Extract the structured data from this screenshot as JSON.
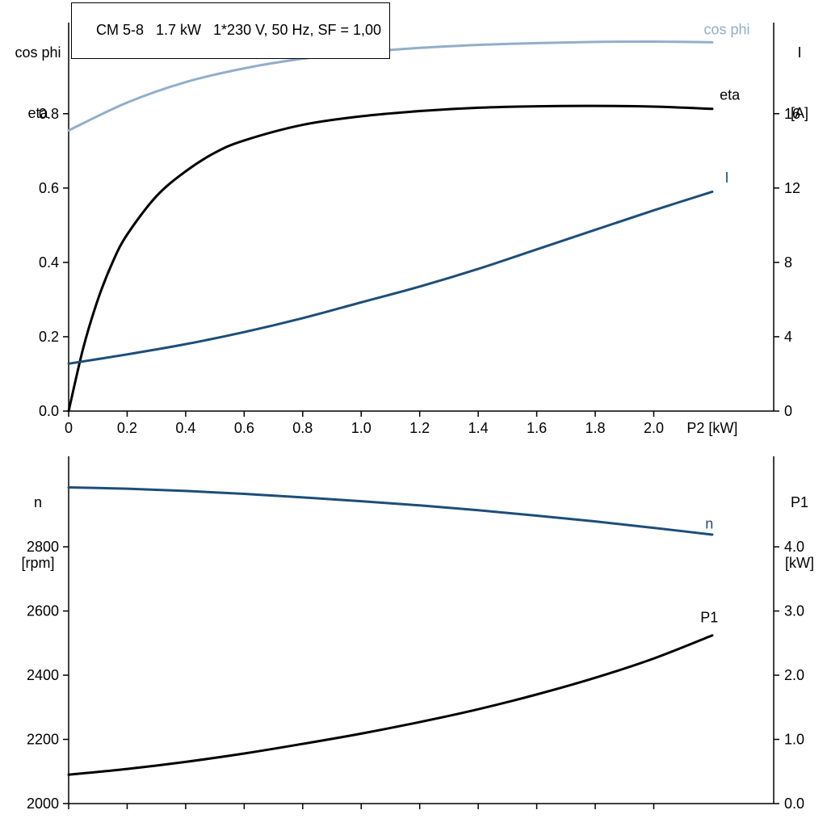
{
  "title_box": "CM 5-8   1.7 kW   1*230 V, 50 Hz, SF = 1,00",
  "chart_data": [
    {
      "type": "line",
      "title": "CM 5-8   1.7 kW   1*230 V, 50 Hz, SF = 1,00",
      "grid": false,
      "x_axis": {
        "label": "P2 [kW]",
        "range": [
          0,
          2.41
        ],
        "label_at_x": 2.2,
        "ticks": [
          {
            "v": 0,
            "label": "0"
          },
          {
            "v": 0.2,
            "label": "0.2"
          },
          {
            "v": 0.4,
            "label": "0.4"
          },
          {
            "v": 0.6,
            "label": "0.6"
          },
          {
            "v": 0.8,
            "label": "0.8"
          },
          {
            "v": 1.0,
            "label": "1.0"
          },
          {
            "v": 1.2,
            "label": "1.2"
          },
          {
            "v": 1.4,
            "label": "1.4"
          },
          {
            "v": 1.6,
            "label": "1.6"
          },
          {
            "v": 1.8,
            "label": "1.8"
          },
          {
            "v": 2.0,
            "label": "2.0"
          }
        ]
      },
      "left_axis": {
        "title_lines": [
          "cos phi",
          "eta"
        ],
        "range": [
          0,
          1.045
        ],
        "ticks": [
          {
            "v": 0,
            "label": "0.0"
          },
          {
            "v": 0.2,
            "label": "0.2"
          },
          {
            "v": 0.4,
            "label": "0.4"
          },
          {
            "v": 0.6,
            "label": "0.6"
          },
          {
            "v": 0.8,
            "label": "0.8"
          }
        ]
      },
      "right_axis": {
        "title_lines": [
          "I",
          "[A]"
        ],
        "range": [
          0,
          20.9
        ],
        "ticks": [
          {
            "v": 0,
            "label": "0"
          },
          {
            "v": 4,
            "label": "4"
          },
          {
            "v": 8,
            "label": "8"
          },
          {
            "v": 12,
            "label": "12"
          },
          {
            "v": 16,
            "label": "16"
          }
        ]
      },
      "series": [
        {
          "id": "cos-phi",
          "name": "cos phi",
          "color": "#92AECB",
          "axis": "left",
          "label_at": [
            2.25,
            1.027
          ],
          "x": [
            0,
            0.2,
            0.4,
            0.6,
            0.8,
            1.0,
            1.2,
            1.4,
            1.6,
            1.8,
            2.0,
            2.2
          ],
          "y": [
            0.755,
            0.83,
            0.885,
            0.922,
            0.948,
            0.965,
            0.977,
            0.985,
            0.99,
            0.993,
            0.994,
            0.992
          ]
        },
        {
          "id": "eta",
          "name": "eta",
          "color": "#000000",
          "axis": "left",
          "label_at": [
            2.26,
            0.851
          ],
          "x": [
            0,
            0.05,
            0.1,
            0.15,
            0.2,
            0.3,
            0.4,
            0.5,
            0.6,
            0.8,
            1.0,
            1.2,
            1.4,
            1.6,
            1.8,
            2.0,
            2.2
          ],
          "y": [
            0,
            0.17,
            0.3,
            0.4,
            0.475,
            0.578,
            0.645,
            0.695,
            0.728,
            0.77,
            0.793,
            0.807,
            0.816,
            0.82,
            0.821,
            0.819,
            0.813
          ]
        },
        {
          "id": "current",
          "name": "I",
          "color": "#1C4E79",
          "axis": "right",
          "label_at": [
            2.25,
            12.55
          ],
          "x": [
            0,
            0.2,
            0.4,
            0.6,
            0.8,
            1.0,
            1.2,
            1.4,
            1.6,
            1.8,
            2.0,
            2.2
          ],
          "y": [
            2.55,
            3.05,
            3.6,
            4.25,
            5.0,
            5.85,
            6.7,
            7.65,
            8.7,
            9.75,
            10.8,
            11.8
          ]
        }
      ]
    },
    {
      "type": "line",
      "title": "",
      "grid": false,
      "x_axis": {
        "label": "",
        "range": [
          0,
          2.41
        ],
        "ticks": [
          {
            "v": 0
          },
          {
            "v": 0.2
          },
          {
            "v": 0.4
          },
          {
            "v": 0.6
          },
          {
            "v": 0.8
          },
          {
            "v": 1.0
          },
          {
            "v": 1.2
          },
          {
            "v": 1.4
          },
          {
            "v": 1.6
          },
          {
            "v": 1.8
          },
          {
            "v": 2.0
          }
        ]
      },
      "left_axis": {
        "title_lines": [
          "n",
          "[rpm]"
        ],
        "range": [
          2000,
          3082
        ],
        "ticks": [
          {
            "v": 2000,
            "label": "2000"
          },
          {
            "v": 2200,
            "label": "2200"
          },
          {
            "v": 2400,
            "label": "2400"
          },
          {
            "v": 2600,
            "label": "2600"
          },
          {
            "v": 2800,
            "label": "2800"
          }
        ]
      },
      "right_axis": {
        "title_lines": [
          "P1",
          "[kW]"
        ],
        "range": [
          0,
          5.41
        ],
        "ticks": [
          {
            "v": 0,
            "label": "0.0"
          },
          {
            "v": 1,
            "label": "1.0"
          },
          {
            "v": 2,
            "label": "2.0"
          },
          {
            "v": 3,
            "label": "3.0"
          },
          {
            "v": 4,
            "label": "4.0"
          }
        ]
      },
      "series": [
        {
          "id": "speed",
          "name": "n",
          "color": "#1C4E79",
          "axis": "left",
          "label_at": [
            2.19,
            2872
          ],
          "x": [
            0,
            0.2,
            0.4,
            0.6,
            0.8,
            1.0,
            1.2,
            1.4,
            1.6,
            1.8,
            2.0,
            2.2
          ],
          "y": [
            2985,
            2981,
            2974,
            2965,
            2954,
            2942,
            2929,
            2914,
            2897,
            2879,
            2859,
            2838
          ]
        },
        {
          "id": "p1",
          "name": "P1",
          "color": "#000000",
          "axis": "right",
          "label_at": [
            2.19,
            2.9
          ],
          "x": [
            0,
            0.2,
            0.4,
            0.6,
            0.8,
            1.0,
            1.2,
            1.4,
            1.6,
            1.8,
            2.0,
            2.2
          ],
          "y": [
            0.45,
            0.54,
            0.65,
            0.78,
            0.93,
            1.09,
            1.27,
            1.47,
            1.7,
            1.96,
            2.26,
            2.62
          ]
        }
      ]
    }
  ]
}
